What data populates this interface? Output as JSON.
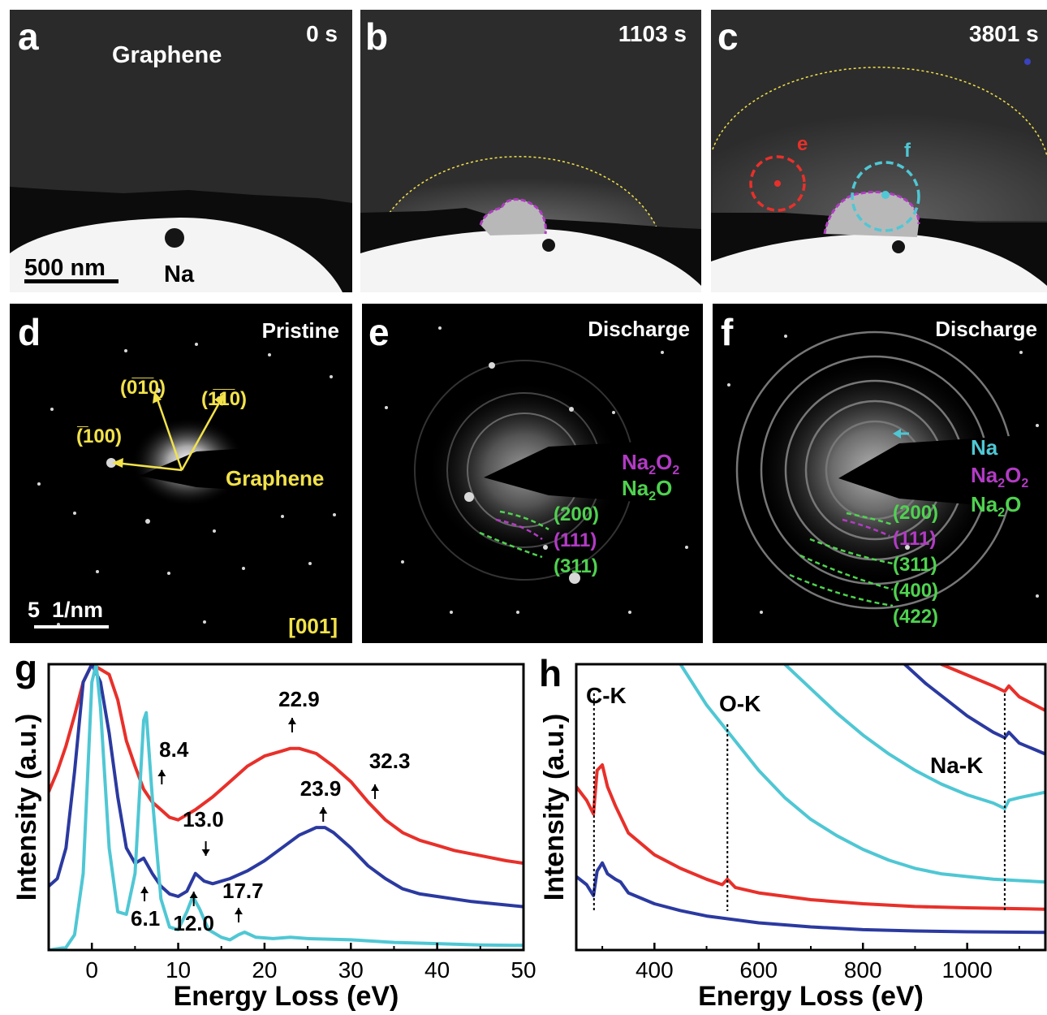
{
  "panels": {
    "a": {
      "letter": "a",
      "time": "0 s",
      "material": "Graphene",
      "particle": "Na",
      "scalebar": "500 nm"
    },
    "b": {
      "letter": "b",
      "time": "1103 s"
    },
    "c": {
      "letter": "c",
      "time": "3801 s",
      "circle_e": "e",
      "circle_f": "f"
    },
    "d": {
      "letter": "d",
      "title": "Pristine",
      "idx_100": "(̅100)",
      "idx_010": "(0̅1̅0)",
      "idx_110": "(1̅1̅0)",
      "material": "Graphene",
      "scalebar": "5  1/nm",
      "zone": "[001]"
    },
    "e": {
      "letter": "e",
      "title": "Discharge",
      "phase1": "Na2O2",
      "phase2": "Na2O",
      "rings": [
        "(200)",
        "(111)",
        "(311)"
      ]
    },
    "f": {
      "letter": "f",
      "title": "Discharge",
      "phase0": "Na",
      "phase1": "Na2O2",
      "phase2": "Na2O",
      "rings": [
        "(200)",
        "(111)",
        "(311)",
        "(400)",
        "(422)"
      ]
    }
  },
  "colors": {
    "red": "#e8302a",
    "blue": "#2b3aa0",
    "cyan": "#4fc7d4",
    "yellow": "#f2e24a",
    "magenta": "#b23bc4",
    "green": "#4fd24f"
  },
  "chart_data": [
    {
      "panel": "g",
      "type": "line",
      "xlabel": "Energy Loss (eV)",
      "ylabel": "Intensity (a.u.)",
      "xlim": [
        -5,
        50
      ],
      "xticks": [
        0,
        10,
        20,
        30,
        40,
        50
      ],
      "annotations": [
        "22.9",
        "8.4",
        "32.3",
        "23.9",
        "13.0",
        "6.1",
        "12.0",
        "17.7"
      ],
      "series": [
        {
          "color": "red",
          "points": [
            [
              -5,
              0.62
            ],
            [
              -4,
              0.7
            ],
            [
              -3,
              0.8
            ],
            [
              -2,
              0.92
            ],
            [
              -1,
              1.05
            ],
            [
              0,
              1.12
            ],
            [
              2,
              1.08
            ],
            [
              3,
              0.98
            ],
            [
              4,
              0.82
            ],
            [
              5,
              0.72
            ],
            [
              6,
              0.63
            ],
            [
              7,
              0.58
            ],
            [
              8,
              0.55
            ],
            [
              9,
              0.52
            ],
            [
              10,
              0.51
            ],
            [
              12,
              0.55
            ],
            [
              14,
              0.6
            ],
            [
              16,
              0.66
            ],
            [
              18,
              0.72
            ],
            [
              20,
              0.76
            ],
            [
              22,
              0.78
            ],
            [
              23,
              0.79
            ],
            [
              24,
              0.79
            ],
            [
              26,
              0.77
            ],
            [
              28,
              0.72
            ],
            [
              30,
              0.66
            ],
            [
              32,
              0.58
            ],
            [
              34,
              0.51
            ],
            [
              36,
              0.46
            ],
            [
              38,
              0.43
            ],
            [
              40,
              0.41
            ],
            [
              42,
              0.39
            ],
            [
              45,
              0.37
            ],
            [
              48,
              0.35
            ],
            [
              50,
              0.34
            ]
          ]
        },
        {
          "color": "blue",
          "points": [
            [
              -5,
              0.25
            ],
            [
              -4,
              0.28
            ],
            [
              -3,
              0.4
            ],
            [
              -2,
              0.7
            ],
            [
              -1,
              1.05
            ],
            [
              0,
              1.12
            ],
            [
              1,
              1.05
            ],
            [
              2,
              0.85
            ],
            [
              3,
              0.6
            ],
            [
              4,
              0.4
            ],
            [
              5,
              0.34
            ],
            [
              6,
              0.36
            ],
            [
              7,
              0.3
            ],
            [
              8,
              0.25
            ],
            [
              9,
              0.22
            ],
            [
              10,
              0.21
            ],
            [
              11,
              0.23
            ],
            [
              12,
              0.3
            ],
            [
              13,
              0.27
            ],
            [
              14,
              0.26
            ],
            [
              16,
              0.28
            ],
            [
              18,
              0.31
            ],
            [
              20,
              0.35
            ],
            [
              22,
              0.4
            ],
            [
              24,
              0.45
            ],
            [
              26,
              0.48
            ],
            [
              27,
              0.48
            ],
            [
              28,
              0.46
            ],
            [
              30,
              0.4
            ],
            [
              32,
              0.33
            ],
            [
              34,
              0.28
            ],
            [
              36,
              0.24
            ],
            [
              38,
              0.22
            ],
            [
              40,
              0.21
            ],
            [
              44,
              0.19
            ],
            [
              50,
              0.17
            ]
          ]
        },
        {
          "color": "cyan",
          "points": [
            [
              -5,
              0.0
            ],
            [
              -3,
              0.01
            ],
            [
              -2,
              0.06
            ],
            [
              -1,
              0.3
            ],
            [
              0,
              1.05
            ],
            [
              0.5,
              1.12
            ],
            [
              1,
              0.95
            ],
            [
              2,
              0.4
            ],
            [
              3,
              0.15
            ],
            [
              4,
              0.14
            ],
            [
              5,
              0.3
            ],
            [
              5.5,
              0.6
            ],
            [
              6,
              0.9
            ],
            [
              6.3,
              0.93
            ],
            [
              7,
              0.6
            ],
            [
              8,
              0.2
            ],
            [
              9,
              0.09
            ],
            [
              10,
              0.08
            ],
            [
              11,
              0.15
            ],
            [
              11.7,
              0.21
            ],
            [
              12.5,
              0.16
            ],
            [
              13.5,
              0.08
            ],
            [
              15,
              0.05
            ],
            [
              16,
              0.04
            ],
            [
              17,
              0.06
            ],
            [
              17.7,
              0.07
            ],
            [
              19,
              0.05
            ],
            [
              21,
              0.045
            ],
            [
              23,
              0.05
            ],
            [
              25,
              0.045
            ],
            [
              30,
              0.04
            ],
            [
              35,
              0.03
            ],
            [
              40,
              0.025
            ],
            [
              45,
              0.02
            ],
            [
              50,
              0.018
            ]
          ]
        }
      ]
    },
    {
      "panel": "h",
      "type": "line",
      "xlabel": "Energy Loss (eV)",
      "ylabel": "Intensity (a.u.)",
      "xlim": [
        250,
        1150
      ],
      "xticks": [
        400,
        600,
        800,
        1000
      ],
      "edges": [
        {
          "label": "C-K",
          "x": 284
        },
        {
          "label": "O-K",
          "x": 540
        },
        {
          "label": "Na-K",
          "x": 1072
        }
      ],
      "series": [
        {
          "color": "blue",
          "points": [
            [
              250,
              0.27
            ],
            [
              270,
              0.24
            ],
            [
              283,
              0.2
            ],
            [
              290,
              0.29
            ],
            [
              300,
              0.32
            ],
            [
              310,
              0.28
            ],
            [
              325,
              0.26
            ],
            [
              335,
              0.25
            ],
            [
              350,
              0.21
            ],
            [
              400,
              0.17
            ],
            [
              450,
              0.145
            ],
            [
              500,
              0.125
            ],
            [
              600,
              0.1
            ],
            [
              700,
              0.085
            ],
            [
              800,
              0.075
            ],
            [
              900,
              0.07
            ],
            [
              1000,
              0.067
            ],
            [
              1150,
              0.065
            ]
          ]
        },
        {
          "color": "red",
          "points": [
            [
              250,
              0.6
            ],
            [
              270,
              0.55
            ],
            [
              283,
              0.5
            ],
            [
              290,
              0.66
            ],
            [
              300,
              0.68
            ],
            [
              310,
              0.6
            ],
            [
              325,
              0.53
            ],
            [
              335,
              0.49
            ],
            [
              350,
              0.43
            ],
            [
              400,
              0.35
            ],
            [
              450,
              0.3
            ],
            [
              500,
              0.26
            ],
            [
              530,
              0.24
            ],
            [
              540,
              0.26
            ],
            [
              555,
              0.23
            ],
            [
              600,
              0.21
            ],
            [
              700,
              0.185
            ],
            [
              800,
              0.17
            ],
            [
              900,
              0.16
            ],
            [
              1000,
              0.155
            ],
            [
              1150,
              0.15
            ]
          ]
        },
        {
          "color": "cyan",
          "points": [
            [
              450,
              1.05
            ],
            [
              500,
              0.9
            ],
            [
              550,
              0.78
            ],
            [
              600,
              0.66
            ],
            [
              650,
              0.56
            ],
            [
              700,
              0.48
            ],
            [
              750,
              0.42
            ],
            [
              800,
              0.37
            ],
            [
              850,
              0.33
            ],
            [
              900,
              0.3
            ],
            [
              950,
              0.28
            ],
            [
              1000,
              0.27
            ],
            [
              1050,
              0.26
            ],
            [
              1100,
              0.255
            ],
            [
              1150,
              0.25
            ]
          ]
        },
        {
          "color": "cyan",
          "points": [
            [
              650,
              1.05
            ],
            [
              700,
              0.96
            ],
            [
              750,
              0.87
            ],
            [
              800,
              0.79
            ],
            [
              850,
              0.72
            ],
            [
              900,
              0.66
            ],
            [
              950,
              0.61
            ],
            [
              1000,
              0.57
            ],
            [
              1050,
              0.54
            ],
            [
              1072,
              0.52
            ],
            [
              1080,
              0.55
            ],
            [
              1100,
              0.56
            ],
            [
              1150,
              0.58
            ]
          ]
        },
        {
          "color": "blue",
          "points": [
            [
              880,
              1.05
            ],
            [
              920,
              0.98
            ],
            [
              960,
              0.92
            ],
            [
              1000,
              0.86
            ],
            [
              1050,
              0.8
            ],
            [
              1072,
              0.78
            ],
            [
              1080,
              0.8
            ],
            [
              1100,
              0.76
            ],
            [
              1150,
              0.72
            ]
          ]
        },
        {
          "color": "red",
          "points": [
            [
              950,
              1.05
            ],
            [
              1000,
              1.01
            ],
            [
              1050,
              0.97
            ],
            [
              1072,
              0.95
            ],
            [
              1080,
              0.97
            ],
            [
              1100,
              0.93
            ],
            [
              1150,
              0.88
            ]
          ]
        }
      ]
    }
  ]
}
